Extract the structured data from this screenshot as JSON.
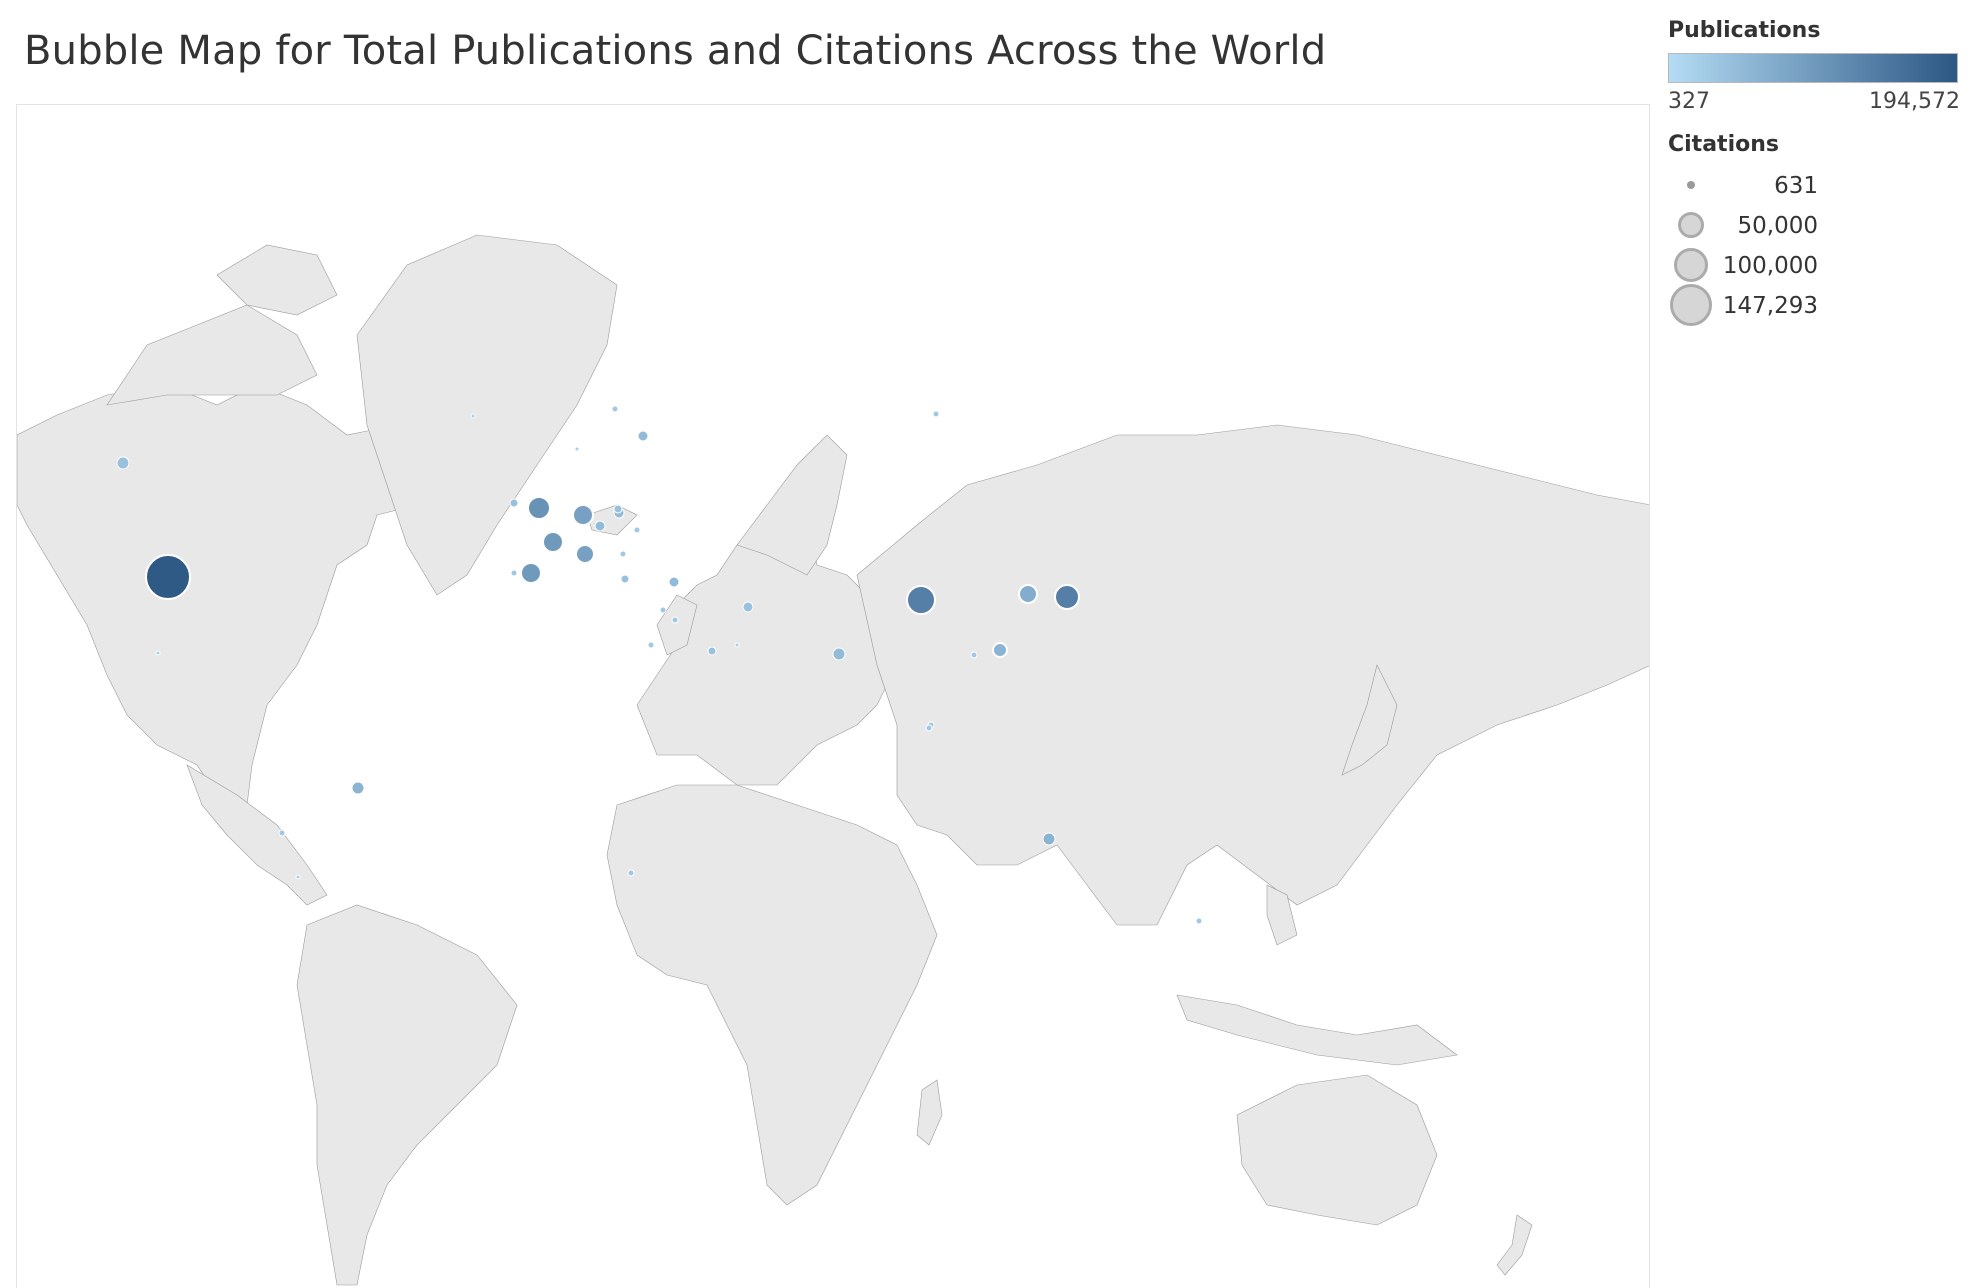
{
  "title": "Bubble Map for Total Publications and Citations Across the World",
  "legend": {
    "color_title": "Publications",
    "color_min_label": "327",
    "color_max_label": "194,572",
    "color_low": "#b4dcf4",
    "color_high": "#2c5784",
    "size_title": "Citations",
    "size_items": [
      {
        "label": "631"
      },
      {
        "label": "50,000"
      },
      {
        "label": "100,000"
      },
      {
        "label": "147,293"
      }
    ]
  },
  "map": {
    "land_color": "#e8e8e8",
    "border_color": "#9a9a9a",
    "ocean_color": "#ffffff"
  }
}
